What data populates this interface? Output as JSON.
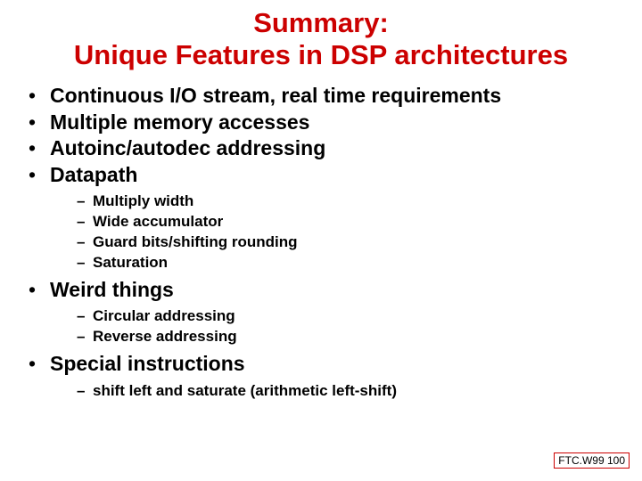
{
  "colors": {
    "title": "#cc0000",
    "text": "#000000",
    "background": "#ffffff",
    "footer_border": "#cc0000"
  },
  "typography": {
    "title_fontsize": 31,
    "lvl1_fontsize": 23,
    "lvl2_fontsize": 17,
    "footer_fontsize": 12,
    "font_family": "Arial",
    "title_weight": "bold",
    "body_weight": "bold"
  },
  "title_line1": "Summary:",
  "title_line2": "Unique Features in DSP architectures",
  "bullets": {
    "b1": "Continuous I/O stream, real time requirements",
    "b2": "Multiple memory accesses",
    "b3": "Autoinc/autodec addressing",
    "b4": "Datapath",
    "b4_sub": {
      "s1": "Multiply width",
      "s2": "Wide accumulator",
      "s3": "Guard bits/shifting rounding",
      "s4": "Saturation"
    },
    "b5": "Weird things",
    "b5_sub": {
      "s1": "Circular addressing",
      "s2": "Reverse addressing"
    },
    "b6": "Special instructions",
    "b6_sub": {
      "s1": "shift left and saturate (arithmetic left-shift)"
    }
  },
  "footer": "FTC.W99 100"
}
